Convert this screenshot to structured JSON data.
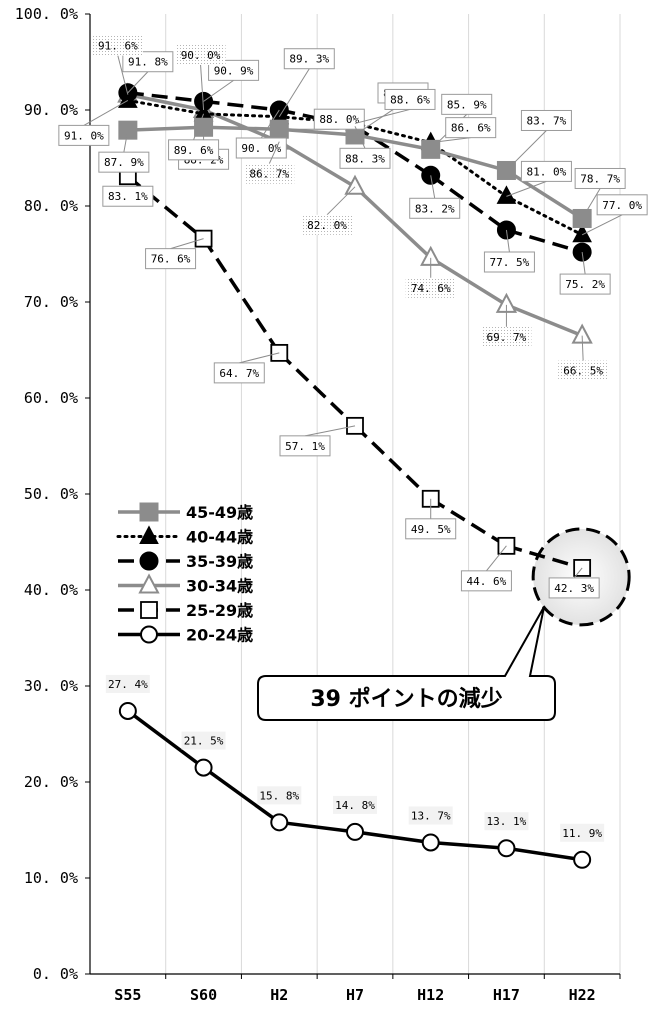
{
  "chart_data": {
    "type": "line",
    "title": "",
    "xlabel": "",
    "ylabel": "",
    "categories": [
      "S55",
      "S60",
      "H2",
      "H7",
      "H12",
      "H17",
      "H22"
    ],
    "ylim": [
      0,
      100
    ],
    "y_ticks": [
      "0. 0%",
      "10. 0%",
      "20. 0%",
      "30. 0%",
      "40. 0%",
      "50. 0%",
      "60. 0%",
      "70. 0%",
      "80. 0%",
      "90. 0%",
      "100. 0%"
    ],
    "grid": "vertical",
    "legend_position": "left-middle",
    "series": [
      {
        "name": "45-49歳",
        "values": [
          87.9,
          88.2,
          88.0,
          87.4,
          85.9,
          83.7,
          78.7
        ],
        "labels": [
          "87. 9%",
          "88. 2%",
          "88. 0%",
          "87. 4%",
          "85. 9%",
          "83. 7%",
          "78. 7%"
        ],
        "color": "#8c8c8c",
        "dash": "solid",
        "marker": "square-filled"
      },
      {
        "name": "40-44歳",
        "values": [
          91.0,
          89.6,
          89.3,
          88.6,
          86.6,
          81.0,
          77.0
        ],
        "labels": [
          "91. 0%",
          "89. 6%",
          "89. 3%",
          "88. 6%",
          "86. 6%",
          "81. 0%",
          "77. 0%"
        ],
        "color": "#000000",
        "dash": "dotted",
        "marker": "triangle-filled"
      },
      {
        "name": "35-39歳",
        "values": [
          91.8,
          90.9,
          90.0,
          88.3,
          83.2,
          77.5,
          75.2
        ],
        "labels": [
          "91. 8%",
          "90. 9%",
          "90. 0%",
          "88. 3%",
          "83. 2%",
          "77. 5%",
          "75. 2%"
        ],
        "color": "#000000",
        "dash": "dashed",
        "marker": "circle-filled"
      },
      {
        "name": "30-34歳",
        "values": [
          91.6,
          90.0,
          86.7,
          82.0,
          74.6,
          69.7,
          66.5
        ],
        "labels": [
          "91. 6%",
          "90. 0%",
          "86. 7%",
          "82. 0%",
          "74. 6%",
          "69. 7%",
          "66. 5%"
        ],
        "color": "#8c8c8c",
        "dash": "solid",
        "marker": "triangle-open"
      },
      {
        "name": "25-29歳",
        "values": [
          83.1,
          76.6,
          64.7,
          57.1,
          49.5,
          44.6,
          42.3
        ],
        "labels": [
          "83. 1%",
          "76. 6%",
          "64. 7%",
          "57. 1%",
          "49. 5%",
          "44. 6%",
          "42. 3%"
        ],
        "color": "#000000",
        "dash": "dashed",
        "marker": "square-open"
      },
      {
        "name": "20-24歳",
        "values": [
          27.4,
          21.5,
          15.8,
          14.8,
          13.7,
          13.1,
          11.9
        ],
        "labels": [
          "27. 4%",
          "21. 5%",
          "15. 8%",
          "14. 8%",
          "13. 7%",
          "13. 1%",
          "11. 9%"
        ],
        "color": "#000000",
        "dash": "solid",
        "marker": "circle-open"
      }
    ],
    "annotation": "39 ポイントの減少"
  }
}
